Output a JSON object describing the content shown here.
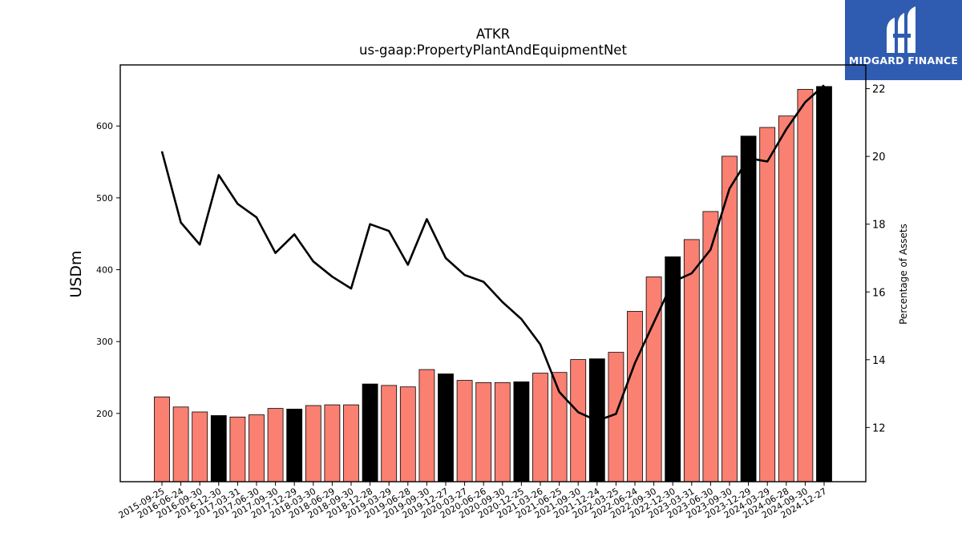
{
  "logo": {
    "text": "MIDGARD FINANCE",
    "color": "#2f5cb0"
  },
  "chart_data": {
    "type": "bar",
    "title": "ATKR",
    "subtitle": "us-gaap:PropertyPlantAndEquipmentNet",
    "ylabel": "USDm",
    "y2label": "Percentage of Assets",
    "ylim": [
      105,
      685
    ],
    "y2lim": [
      10.4,
      22.7
    ],
    "yticks": [
      200,
      300,
      400,
      500,
      600
    ],
    "y2ticks": [
      12,
      14,
      16,
      18,
      20,
      22
    ],
    "bar_color": "#fa8072",
    "highlight_color": "#000000",
    "line_color": "#000000",
    "categories": [
      "2015-09-25",
      "2016-06-24",
      "2016-09-30",
      "2016-12-30",
      "2017-03-31",
      "2017-06-30",
      "2017-09-30",
      "2017-12-29",
      "2018-03-30",
      "2018-06-29",
      "2018-09-30",
      "2018-12-28",
      "2019-03-29",
      "2019-06-28",
      "2019-09-30",
      "2019-12-27",
      "2020-03-27",
      "2020-06-26",
      "2020-09-30",
      "2020-12-25",
      "2021-03-26",
      "2021-06-25",
      "2021-09-30",
      "2021-12-24",
      "2022-03-25",
      "2022-06-24",
      "2022-09-30",
      "2022-12-30",
      "2023-03-31",
      "2023-06-30",
      "2023-09-30",
      "2023-12-29",
      "2024-03-29",
      "2024-06-28",
      "2024-09-30",
      "2024-12-27"
    ],
    "values": [
      223,
      209,
      202,
      197,
      195,
      198,
      207,
      206,
      211,
      212,
      212,
      241,
      239,
      237,
      261,
      255,
      246,
      243,
      243,
      244,
      256,
      257,
      275,
      276,
      285,
      342,
      390,
      418,
      442,
      481,
      558,
      586,
      598,
      614,
      651,
      655
    ],
    "highlight": [
      false,
      false,
      false,
      true,
      false,
      false,
      false,
      true,
      false,
      false,
      false,
      true,
      false,
      false,
      false,
      true,
      false,
      false,
      false,
      true,
      false,
      false,
      false,
      true,
      false,
      false,
      false,
      true,
      false,
      false,
      false,
      true,
      false,
      false,
      false,
      true
    ],
    "series": [
      {
        "axis": "right",
        "values": [
          20.15,
          18.05,
          17.4,
          19.45,
          18.6,
          18.2,
          17.15,
          17.7,
          16.9,
          16.45,
          16.1,
          18.0,
          17.8,
          16.8,
          18.15,
          17.0,
          16.5,
          16.3,
          15.7,
          15.2,
          14.45,
          13.05,
          12.45,
          12.2,
          12.4,
          13.9,
          15.1,
          16.3,
          16.55,
          17.25,
          19.05,
          19.95,
          19.85,
          20.8,
          21.6,
          22.1
        ]
      }
    ]
  }
}
